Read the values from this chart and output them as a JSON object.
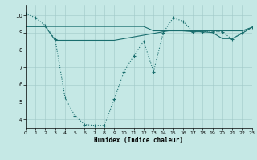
{
  "bg_color": "#c5e8e5",
  "line_color": "#1a6e6e",
  "xlabel": "Humidex (Indice chaleur)",
  "xlim": [
    0,
    23
  ],
  "ylim": [
    3.5,
    10.6
  ],
  "yticks": [
    4,
    5,
    6,
    7,
    8,
    9,
    10
  ],
  "xticks": [
    0,
    1,
    2,
    3,
    4,
    5,
    6,
    7,
    8,
    9,
    10,
    11,
    12,
    13,
    14,
    15,
    16,
    17,
    18,
    19,
    20,
    21,
    22,
    23
  ],
  "line1_x": [
    0,
    1,
    2,
    3,
    4,
    5,
    6,
    7,
    8,
    9,
    10,
    11,
    12,
    13,
    14,
    15,
    16,
    17,
    18,
    19,
    20,
    21,
    22,
    23
  ],
  "line1_y": [
    10.1,
    9.85,
    9.4,
    8.6,
    5.25,
    4.2,
    3.7,
    3.65,
    3.65,
    5.15,
    6.75,
    7.65,
    8.5,
    6.75,
    9.0,
    9.85,
    9.65,
    9.05,
    9.05,
    9.05,
    9.05,
    8.6,
    9.0,
    9.3
  ],
  "line2_x": [
    0,
    1,
    2,
    3,
    4,
    5,
    6,
    7,
    8,
    9,
    10,
    11,
    12,
    13,
    14,
    15,
    16,
    17,
    18,
    19,
    20,
    21,
    22,
    23
  ],
  "line2_y": [
    9.35,
    9.35,
    9.35,
    9.35,
    9.35,
    9.35,
    9.35,
    9.35,
    9.35,
    9.35,
    9.35,
    9.35,
    9.35,
    9.1,
    9.1,
    9.1,
    9.1,
    9.1,
    9.1,
    9.1,
    9.1,
    9.1,
    9.1,
    9.3
  ],
  "line3_x": [
    0,
    1,
    2,
    3,
    4,
    5,
    6,
    7,
    8,
    9,
    10,
    11,
    12,
    13,
    14,
    15,
    16,
    17,
    18,
    19,
    20,
    21,
    22,
    23
  ],
  "line3_y": [
    9.35,
    9.35,
    9.35,
    8.55,
    8.55,
    8.55,
    8.55,
    8.55,
    8.55,
    8.55,
    8.65,
    8.75,
    8.85,
    8.95,
    9.05,
    9.15,
    9.1,
    9.05,
    9.05,
    9.0,
    8.65,
    8.65,
    8.95,
    9.3
  ]
}
